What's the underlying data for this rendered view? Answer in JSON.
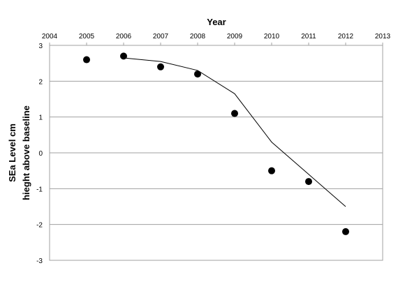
{
  "chart_data": {
    "type": "scatter",
    "title": "",
    "xlabel": "Year",
    "ylabel_lines": [
      "SEa Level cm",
      "hieght  above baseline"
    ],
    "x_axis_position": "top",
    "xlim": [
      2004,
      2013
    ],
    "ylim": [
      -3,
      3
    ],
    "x_ticks": [
      "2004",
      "2005",
      "2006",
      "2007",
      "2008",
      "2009",
      "2010",
      "2011",
      "2012",
      "2013"
    ],
    "y_ticks": [
      "3",
      "2",
      "1",
      "0",
      "-1",
      "-2",
      "-3"
    ],
    "grid": "horizontal",
    "legend": "none",
    "series": [
      {
        "kind": "points",
        "color": "#000000",
        "x": [
          2005,
          2006,
          2007,
          2008,
          2009,
          2010,
          2011,
          2012
        ],
        "y": [
          2.6,
          2.7,
          2.4,
          2.2,
          1.1,
          -0.5,
          -0.8,
          -2.2
        ]
      },
      {
        "kind": "line",
        "color": "#000000",
        "x": [
          2006,
          2007,
          2008,
          2009,
          2010,
          2011,
          2012
        ],
        "y": [
          2.65,
          2.55,
          2.3,
          1.65,
          0.3,
          -0.6,
          -1.5
        ]
      }
    ]
  }
}
